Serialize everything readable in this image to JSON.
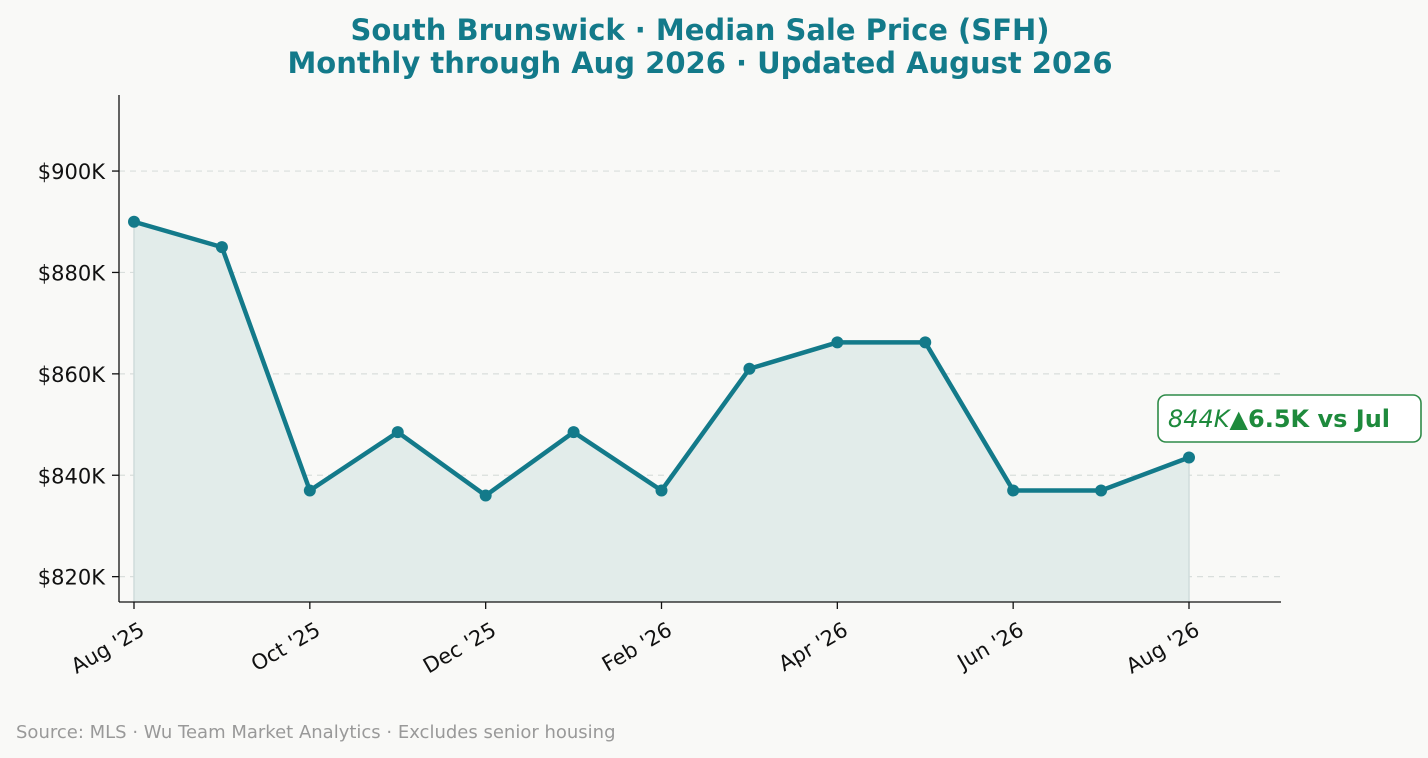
{
  "chart_data": {
    "type": "line",
    "title": "South Brunswick  ·  Median Sale Price (SFH)",
    "subtitle": "Monthly through Aug 2026  ·  Updated August 2026",
    "xlabel": "",
    "ylabel": "",
    "x": [
      "2025-08",
      "2025-09",
      "2025-10",
      "2025-11",
      "2025-12",
      "2026-01",
      "2026-02",
      "2026-03",
      "2026-04",
      "2026-05",
      "2026-06",
      "2026-07",
      "2026-08"
    ],
    "series": [
      {
        "values": [
          890000,
          885000,
          837000,
          848500,
          836000,
          848500,
          837000,
          861000,
          866200,
          866200,
          837000,
          837000,
          843500
        ]
      }
    ],
    "ylim": [
      815000,
      915000
    ],
    "y_ticks": [
      820000,
      840000,
      860000,
      880000,
      900000
    ],
    "y_tick_labels": [
      "$820K",
      "$840K",
      "$860K",
      "$880K",
      "$900K"
    ],
    "x_tick_labels": [
      "Aug '25",
      "Oct '25",
      "Dec '25",
      "Feb '26",
      "Apr '26",
      "Jun '26",
      "Aug '26"
    ],
    "x_tick_positions": [
      "2025-08",
      "2025-10",
      "2025-12",
      "2026-02",
      "2026-04",
      "2026-06",
      "2026-08"
    ],
    "grid": "horizontal-dashed",
    "area_fill": true,
    "annotation": {
      "point": "2026-08",
      "value_text": "844K",
      "change_text": "▲6.5K vs Jul"
    },
    "line_color": "#137a8a",
    "fill_color": "#e2ecea",
    "annotation_color": "#1e8a3c"
  },
  "footer": {
    "source": "Source: MLS · Wu Team Market Analytics · Excludes senior housing"
  }
}
